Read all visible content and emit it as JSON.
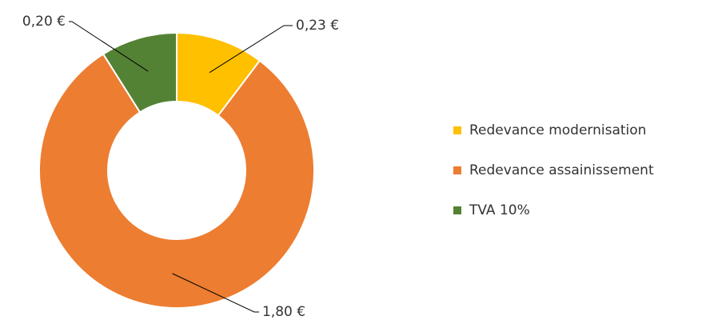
{
  "chart_data": {
    "type": "donut",
    "categories": [
      "Redevance modernisation",
      "Redevance assainissement",
      "TVA 10%"
    ],
    "values": [
      0.23,
      1.8,
      0.2
    ],
    "value_labels": [
      "0,23 €",
      "1,80 €",
      "0,20 €"
    ],
    "colors": [
      "#ffc000",
      "#ed7d31",
      "#548235"
    ],
    "legend": "right"
  }
}
